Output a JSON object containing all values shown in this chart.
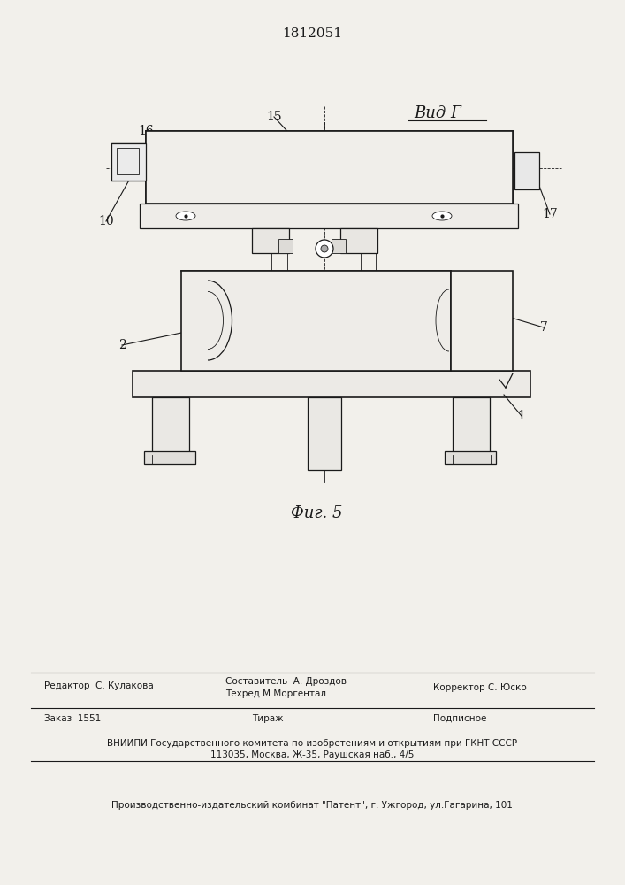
{
  "patent_number": "1812051",
  "fig_label": "Φиг. 5",
  "view_label": "Вид Г",
  "bg_color": "#f2f0eb",
  "line_color": "#1a1a1a",
  "thin_color": "#2a2a2a"
}
